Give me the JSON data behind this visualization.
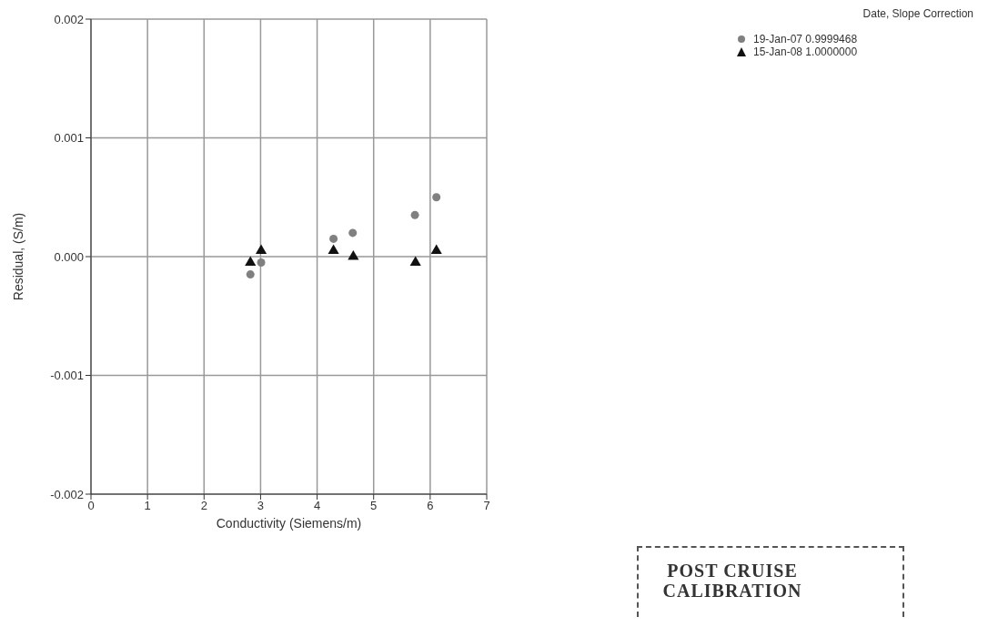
{
  "chart_data": {
    "type": "scatter",
    "xlabel": "Conductivity (Siemens/m)",
    "ylabel": "Residual, (S/m)",
    "legend_title": "Date, Slope Correction",
    "annotations": [
      "POST CRUISE CALIBRATION"
    ],
    "series": [
      {
        "name": "19-Jan-07  0.9999468",
        "color": "#808080",
        "marker": "circle",
        "x": [
          2.82,
          3.01,
          4.29,
          4.63,
          5.73,
          6.11
        ],
        "values": [
          -0.00015,
          -5e-05,
          0.00015,
          0.0002,
          0.00035,
          0.0005
        ]
      },
      {
        "name": "15-Jan-08  1.0000000",
        "color": "#111111",
        "marker": "triangle",
        "x": [
          2.82,
          3.01,
          4.29,
          4.64,
          5.74,
          6.11
        ],
        "values": [
          -5e-05,
          5e-05,
          5e-05,
          0.0,
          -5e-05,
          5e-05
        ]
      }
    ],
    "xlim": [
      0,
      7
    ],
    "xticks": [
      0,
      1,
      2,
      3,
      4,
      5,
      6,
      7
    ],
    "ylim": [
      -0.002,
      0.002
    ],
    "yticks": [
      {
        "value": -0.002,
        "label": "-0.002"
      },
      {
        "value": -0.001,
        "label": "-0.001"
      },
      {
        "value": 0,
        "label": "0.000"
      },
      {
        "value": 0.001,
        "label": "0.001"
      },
      {
        "value": 0.002,
        "label": "0.002"
      }
    ],
    "grid": true,
    "legend": "top right"
  }
}
